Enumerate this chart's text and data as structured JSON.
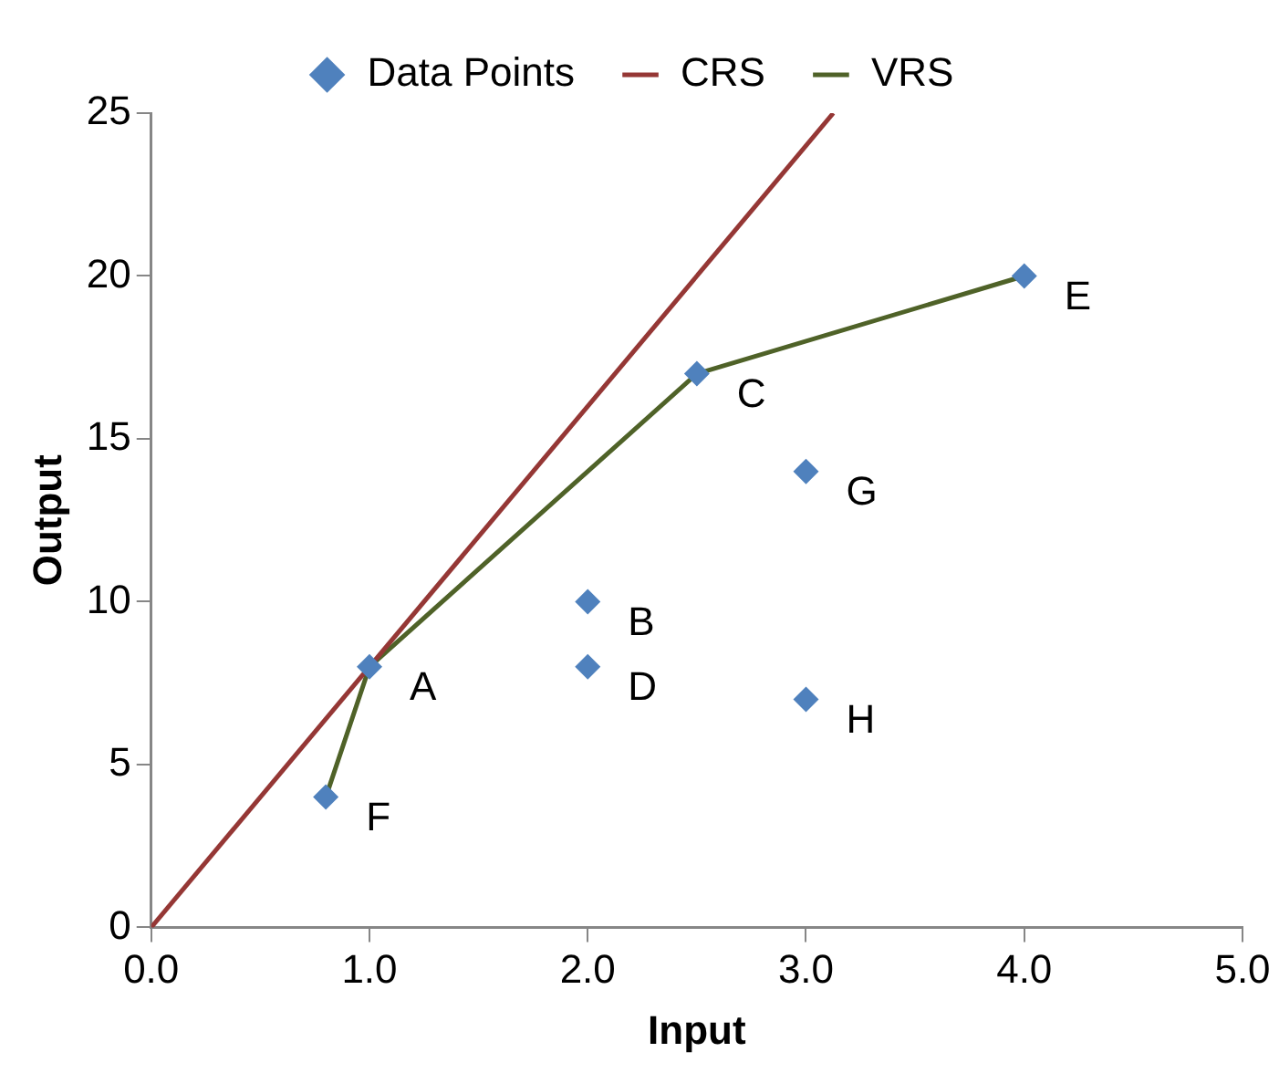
{
  "chart_data": {
    "type": "scatter",
    "xlabel": "Input",
    "ylabel": "Output",
    "xlim": [
      0,
      5
    ],
    "xticks": [
      {
        "value": 0,
        "label": "0.0"
      },
      {
        "value": 1,
        "label": "1.0"
      },
      {
        "value": 2,
        "label": "2.0"
      },
      {
        "value": 3,
        "label": "3.0"
      },
      {
        "value": 4,
        "label": "4.0"
      },
      {
        "value": 5,
        "label": "5.0"
      }
    ],
    "ylim": [
      0,
      25
    ],
    "yticks": [
      0,
      5,
      10,
      15,
      20,
      25
    ],
    "grid": false,
    "legend": "top",
    "series": [
      {
        "name": "Data Points",
        "type": "scatter",
        "marker": "diamond",
        "color": "#4f81bd",
        "x": [
          1,
          2,
          2.5,
          2,
          4,
          0.8,
          3,
          3
        ],
        "values": [
          8,
          10,
          17,
          8,
          20,
          4,
          14,
          7
        ]
      },
      {
        "name": "CRS",
        "type": "line",
        "marker": "none",
        "color": "#953735",
        "x": [
          0,
          3.125
        ],
        "values": [
          0,
          25
        ]
      },
      {
        "name": "VRS",
        "type": "line",
        "marker": "none",
        "color": "#4f6228",
        "x": [
          0.8,
          1,
          2.5,
          4
        ],
        "values": [
          4,
          8,
          17,
          20
        ]
      }
    ],
    "annotations": [
      {
        "text": "A",
        "x": 1,
        "y": 8
      },
      {
        "text": "B",
        "x": 2,
        "y": 10
      },
      {
        "text": "C",
        "x": 2.5,
        "y": 17
      },
      {
        "text": "D",
        "x": 2,
        "y": 8
      },
      {
        "text": "E",
        "x": 4,
        "y": 20
      },
      {
        "text": "F",
        "x": 0.8,
        "y": 4
      },
      {
        "text": "G",
        "x": 3,
        "y": 14
      },
      {
        "text": "H",
        "x": 3,
        "y": 7
      }
    ]
  }
}
